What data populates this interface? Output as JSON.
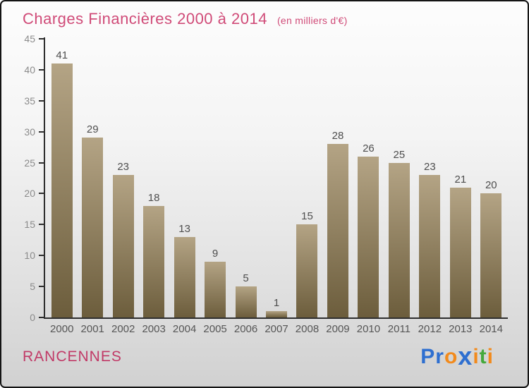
{
  "header": {
    "title": "Charges Financières 2000 à 2014",
    "subtitle": "(en milliers d'€)"
  },
  "chart_data": {
    "type": "bar",
    "title": "Charges Financières 2000 à 2014",
    "unit_note": "en milliers d'€",
    "categories": [
      "2000",
      "2001",
      "2002",
      "2003",
      "2004",
      "2005",
      "2006",
      "2007",
      "2008",
      "2009",
      "2010",
      "2011",
      "2012",
      "2013",
      "2014"
    ],
    "values": [
      41,
      29,
      23,
      18,
      13,
      9,
      5,
      1,
      15,
      28,
      26,
      25,
      23,
      21,
      20
    ],
    "xlabel": "",
    "ylabel": "",
    "ylim": [
      0,
      45
    ],
    "yticks": [
      0,
      5,
      10,
      15,
      20,
      25,
      30,
      35,
      40,
      45
    ],
    "grid": false,
    "legend": false,
    "value_labels": true
  },
  "footer": {
    "location": "RANCENNES",
    "logo": {
      "text": "Proxiti",
      "segments": [
        {
          "text": "P",
          "color": "#2e6fd0"
        },
        {
          "text": "r",
          "color": "#2e6fd0"
        },
        {
          "text": "o",
          "color": "#f28a1c"
        },
        {
          "text": "x",
          "color": "#2e6fd0"
        },
        {
          "text": "i",
          "color": "#f28a1c"
        },
        {
          "text": "t",
          "color": "#44a93c"
        },
        {
          "text": "i",
          "color": "#f28a1c"
        }
      ]
    }
  },
  "colors": {
    "title": "#d04b78",
    "subtitle": "#d04b78",
    "location": "#c13a67",
    "axis": "#2e2e2e",
    "y_tick_label": "#8b8b8b",
    "value_label": "#4e4e4e",
    "category_label": "#555555",
    "bar_top": "#b4a485",
    "bar_bottom": "#6c5d3c"
  }
}
